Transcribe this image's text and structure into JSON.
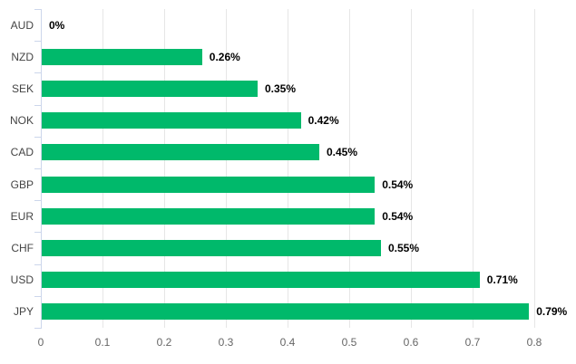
{
  "chart_data": {
    "type": "bar",
    "orientation": "horizontal",
    "title": "",
    "xlabel": "",
    "ylabel": "",
    "legend": "none",
    "grid": "vertical",
    "categories": [
      "AUD",
      "NZD",
      "SEK",
      "NOK",
      "CAD",
      "GBP",
      "EUR",
      "CHF",
      "USD",
      "JPY"
    ],
    "values": [
      0,
      0.26,
      0.35,
      0.42,
      0.45,
      0.54,
      0.54,
      0.55,
      0.71,
      0.79
    ],
    "data_labels": [
      "0%",
      "0.26%",
      "0.35%",
      "0.42%",
      "0.45%",
      "0.54%",
      "0.54%",
      "0.55%",
      "0.71%",
      "0.79%"
    ],
    "x_ticks": [
      "0",
      "0.1",
      "0.2",
      "0.3",
      "0.4",
      "0.5",
      "0.6",
      "0.7",
      "0.8"
    ],
    "xlim": [
      0,
      0.8
    ],
    "colors": {
      "bar": "#00b96b",
      "gridline": "#e6e6e6",
      "axis": "#ccd6eb",
      "category_label": "#444444",
      "tick_label": "#666666",
      "data_label": "#000000",
      "background": "#ffffff"
    }
  }
}
